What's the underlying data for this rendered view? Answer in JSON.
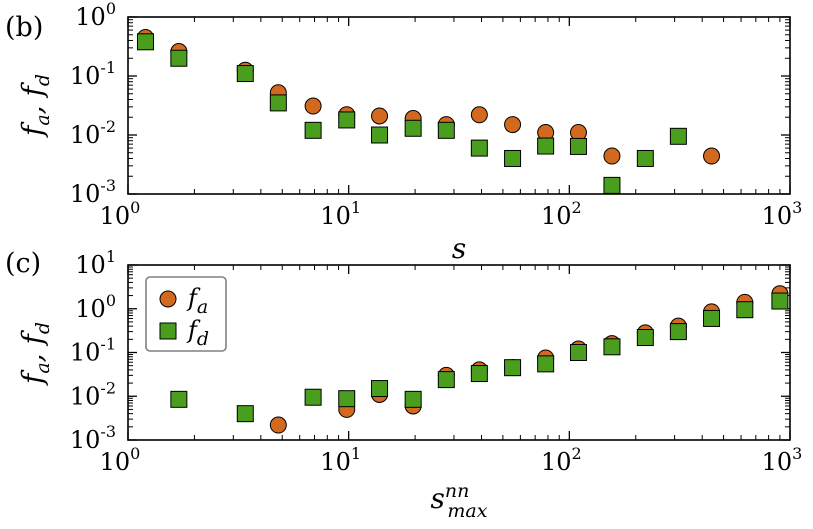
{
  "chart_data": [
    {
      "panel_label": "(b)",
      "type": "scatter",
      "xscale": "log",
      "yscale": "log",
      "xlim": [
        1,
        1000
      ],
      "ylim": [
        0.001,
        1
      ],
      "xticks": [
        1,
        10,
        100,
        1000
      ],
      "yticks": [
        0.001,
        0.01,
        0.1,
        1
      ],
      "xlabel": "s",
      "ylabel": "f_a, f_d",
      "series": [
        {
          "name": "f_a",
          "marker": "circle",
          "color": "#d2691e",
          "points": [
            [
              1.2,
              0.45
            ],
            [
              1.7,
              0.26
            ],
            [
              3.4,
              0.125
            ],
            [
              4.8,
              0.052
            ],
            [
              6.9,
              0.031
            ],
            [
              9.8,
              0.022
            ],
            [
              13.8,
              0.021
            ],
            [
              19.6,
              0.019
            ],
            [
              27.7,
              0.015
            ],
            [
              39.1,
              0.022
            ],
            [
              55.3,
              0.015
            ],
            [
              78.1,
              0.011
            ],
            [
              110,
              0.011
            ],
            [
              156,
              0.0044
            ],
            [
              441,
              0.0044
            ]
          ]
        },
        {
          "name": "f_d",
          "marker": "square",
          "color": "#4a9e1d",
          "points": [
            [
              1.2,
              0.38
            ],
            [
              1.7,
              0.2
            ],
            [
              3.4,
              0.11
            ],
            [
              4.8,
              0.035
            ],
            [
              6.9,
              0.012
            ],
            [
              9.8,
              0.018
            ],
            [
              13.8,
              0.01
            ],
            [
              19.6,
              0.013
            ],
            [
              27.7,
              0.012
            ],
            [
              39.1,
              0.006
            ],
            [
              55.3,
              0.004
            ],
            [
              78.1,
              0.0065
            ],
            [
              110,
              0.0064
            ],
            [
              156,
              0.0014
            ],
            [
              221,
              0.004
            ],
            [
              312,
              0.0095
            ]
          ]
        }
      ]
    },
    {
      "panel_label": "(c)",
      "type": "scatter",
      "xscale": "log",
      "yscale": "log",
      "xlim": [
        1,
        1000
      ],
      "ylim": [
        0.001,
        10
      ],
      "xticks": [
        1,
        10,
        100,
        1000
      ],
      "yticks": [
        0.001,
        0.01,
        0.1,
        1,
        10
      ],
      "xlabel": "s_max^nn",
      "ylabel": "f_a, f_d",
      "legend": {
        "placement": "top-left",
        "entries": [
          "f_a",
          "f_d"
        ]
      },
      "series": [
        {
          "name": "f_a",
          "marker": "circle",
          "color": "#d2691e",
          "points": [
            [
              4.8,
              0.0022
            ],
            [
              9.8,
              0.005
            ],
            [
              13.8,
              0.011
            ],
            [
              19.6,
              0.006
            ],
            [
              27.7,
              0.03
            ],
            [
              39.1,
              0.04
            ],
            [
              55.3,
              0.045
            ],
            [
              78.1,
              0.075
            ],
            [
              110,
              0.12
            ],
            [
              156,
              0.16
            ],
            [
              221,
              0.28
            ],
            [
              312,
              0.4
            ],
            [
              441,
              0.85
            ],
            [
              624,
              1.4
            ],
            [
              900,
              2.2
            ]
          ]
        },
        {
          "name": "f_d",
          "marker": "square",
          "color": "#4a9e1d",
          "points": [
            [
              1.7,
              0.0085
            ],
            [
              3.4,
              0.004
            ],
            [
              6.9,
              0.0095
            ],
            [
              9.8,
              0.0088
            ],
            [
              13.8,
              0.015
            ],
            [
              19.6,
              0.0085
            ],
            [
              27.7,
              0.024
            ],
            [
              39.1,
              0.033
            ],
            [
              55.3,
              0.045
            ],
            [
              78.1,
              0.055
            ],
            [
              110,
              0.1
            ],
            [
              156,
              0.135
            ],
            [
              221,
              0.22
            ],
            [
              312,
              0.3
            ],
            [
              441,
              0.6
            ],
            [
              624,
              0.95
            ],
            [
              900,
              1.5
            ]
          ]
        }
      ]
    }
  ]
}
